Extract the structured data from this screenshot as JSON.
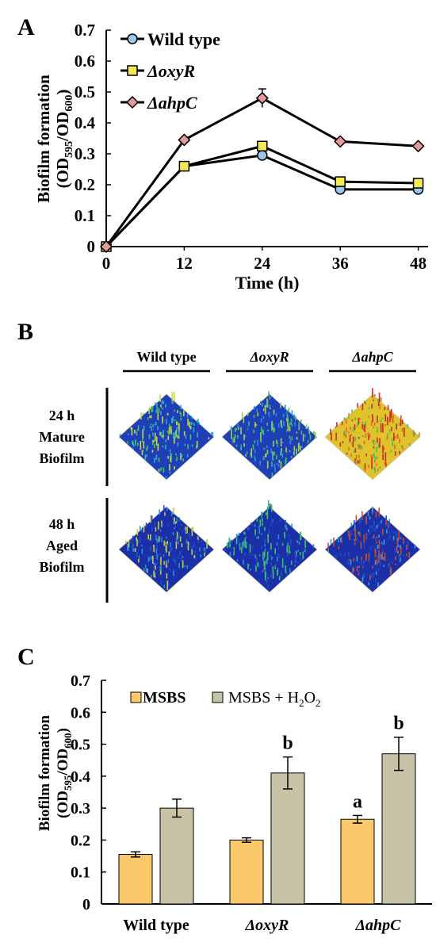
{
  "panel_labels": {
    "a": "A",
    "b": "B",
    "c": "C"
  },
  "panel_a": {
    "ylabel_line1": "Biofilm formation",
    "ylabel_line2_prefix": "(OD",
    "ylabel_line2_sub1": "595",
    "ylabel_line2_mid": "/OD",
    "ylabel_line2_sub2": "600",
    "ylabel_line2_suffix": ")",
    "xlabel": "Time (h)"
  },
  "panel_b": {
    "columns": [
      "Wild  type",
      "ΔoxyR",
      "ΔahpC"
    ],
    "rows": [
      {
        "lines": [
          "24 h",
          "Mature",
          "Biofilm"
        ]
      },
      {
        "lines": [
          "48 h",
          "Aged",
          "Biofilm"
        ]
      }
    ],
    "surface_colors": {
      "wt_24": [
        "#1f3fb8",
        "#2aa9d8",
        "#3ec55a",
        "#c8d83a"
      ],
      "oxy_24": [
        "#1f3fb8",
        "#2a8fd0",
        "#3ec55a",
        "#9fd04a"
      ],
      "ahp_24": [
        "#e0c32a",
        "#e06a2a",
        "#3ec55a",
        "#c82a2a"
      ],
      "wt_48": [
        "#1a2fa8",
        "#1f4fc8",
        "#2a8fd0",
        "#c8c83a"
      ],
      "oxy_48": [
        "#1a2fa8",
        "#1f4fc8",
        "#2a8fd0",
        "#3ec55a"
      ],
      "ahp_48": [
        "#1a2fa8",
        "#1f4fc8",
        "#3a9fd0",
        "#c84a2a"
      ]
    }
  },
  "panel_c": {
    "ylabel_line1": "Biofilm formation",
    "ylabel_line2_prefix": "(OD",
    "ylabel_line2_sub1": "595",
    "ylabel_line2_mid": "/OD",
    "ylabel_line2_sub2": "600",
    "ylabel_line2_suffix": ")",
    "legend_msbs": "MSBS",
    "legend_h2o2_prefix": "MSBS + H",
    "legend_h2o2_sub1": "2",
    "legend_h2o2_mid": "O",
    "legend_h2o2_sub2": "2"
  },
  "chart_data": [
    {
      "type": "line",
      "x": [
        0,
        12,
        24,
        36,
        48
      ],
      "xticks": [
        "0",
        "12",
        "24",
        "36",
        "48"
      ],
      "ylim": [
        0,
        0.7
      ],
      "yticks": [
        "0",
        "0.1",
        "0.2",
        "0.3",
        "0.4",
        "0.5",
        "0.6",
        "0.7"
      ],
      "series": [
        {
          "name": "Wild type",
          "values": [
            0,
            0.26,
            0.295,
            0.185,
            0.185
          ],
          "errors": [
            0,
            0.01,
            0.01,
            0.01,
            0.01
          ],
          "color": "#9bc8ea",
          "marker": "circle"
        },
        {
          "name": "ΔoxyR",
          "values": [
            0,
            0.26,
            0.325,
            0.21,
            0.205
          ],
          "errors": [
            0,
            0.01,
            0.01,
            0.01,
            0.01
          ],
          "color": "#f4ea55",
          "marker": "square"
        },
        {
          "name": "ΔahpC",
          "values": [
            0,
            0.345,
            0.48,
            0.34,
            0.325
          ],
          "errors": [
            0,
            0.01,
            0.03,
            0.01,
            0.01
          ],
          "color": "#e39a9a",
          "marker": "diamond"
        }
      ],
      "xlabel": "Time (h)",
      "ylabel": "Biofilm formation (OD595/OD600)",
      "legend": "top-left"
    },
    {
      "type": "bar",
      "categories": [
        "Wild type",
        "ΔoxyR",
        "ΔahpC"
      ],
      "ylim": [
        0,
        0.7
      ],
      "yticks": [
        "0",
        "0.1",
        "0.2",
        "0.3",
        "0.4",
        "0.5",
        "0.6",
        "0.7"
      ],
      "series": [
        {
          "name": "MSBS",
          "values": [
            0.155,
            0.2,
            0.265
          ],
          "errors": [
            0.008,
            0.007,
            0.012
          ],
          "color": "#fcc96a"
        },
        {
          "name": "MSBS + H2O2",
          "values": [
            0.3,
            0.41,
            0.47
          ],
          "errors": [
            0.028,
            0.05,
            0.052
          ],
          "color": "#c8c3a6"
        }
      ],
      "annotations": [
        {
          "series": 0,
          "category": 2,
          "text": "a"
        },
        {
          "series": 1,
          "category": 1,
          "text": "b"
        },
        {
          "series": 1,
          "category": 2,
          "text": "b"
        }
      ],
      "ylabel": "Biofilm formation (OD595/OD600)",
      "legend": "top-left"
    }
  ]
}
